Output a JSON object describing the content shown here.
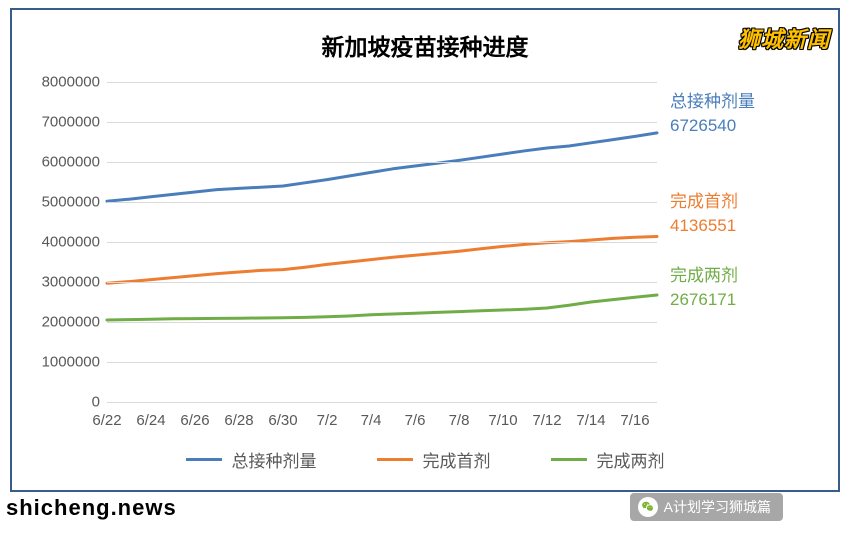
{
  "chart": {
    "title": "新加坡疫苗接种进度",
    "title_fontsize": 23,
    "background_color": "#ffffff",
    "border_color": "#385d8a",
    "grid_color": "#d9d9d9",
    "axis_label_color": "#595959",
    "axis_fontsize": 15,
    "ylim": [
      0,
      8000000
    ],
    "ytick_step": 1000000,
    "yticks": [
      "0",
      "1000000",
      "2000000",
      "3000000",
      "4000000",
      "5000000",
      "6000000",
      "7000000",
      "8000000"
    ],
    "xticks": [
      "6/22",
      "6/24",
      "6/26",
      "6/28",
      "6/30",
      "7/2",
      "7/4",
      "7/6",
      "7/8",
      "7/10",
      "7/12",
      "7/14",
      "7/16"
    ],
    "x_count": 26,
    "line_width": 3,
    "series": [
      {
        "key": "total",
        "name": "总接种剂量",
        "color": "#4a7ebb",
        "final_label": "总接种剂量",
        "final_value": "6726540",
        "values": [
          5020000,
          5070000,
          5130000,
          5190000,
          5250000,
          5310000,
          5340000,
          5370000,
          5400000,
          5480000,
          5560000,
          5650000,
          5740000,
          5830000,
          5900000,
          5970000,
          6040000,
          6120000,
          6200000,
          6280000,
          6350000,
          6400000,
          6480000,
          6560000,
          6640000,
          6726540
        ]
      },
      {
        "key": "first",
        "name": "完成首剂",
        "color": "#ed7d31",
        "final_label": "完成首剂",
        "final_value": "4136551",
        "values": [
          2970000,
          3010000,
          3060000,
          3110000,
          3160000,
          3210000,
          3250000,
          3290000,
          3310000,
          3370000,
          3440000,
          3500000,
          3560000,
          3620000,
          3670000,
          3720000,
          3770000,
          3830000,
          3890000,
          3940000,
          3980000,
          4010000,
          4050000,
          4090000,
          4120000,
          4136551
        ]
      },
      {
        "key": "second",
        "name": "完成两剂",
        "color": "#70ad47",
        "final_label": "完成两剂",
        "final_value": "2676171",
        "values": [
          2050000,
          2060000,
          2070000,
          2080000,
          2085000,
          2090000,
          2095000,
          2100000,
          2105000,
          2115000,
          2130000,
          2150000,
          2180000,
          2200000,
          2220000,
          2240000,
          2260000,
          2280000,
          2300000,
          2320000,
          2350000,
          2420000,
          2500000,
          2560000,
          2620000,
          2676171
        ]
      }
    ]
  },
  "watermarks": {
    "top_right": "狮城新闻",
    "bottom_left": "shicheng.news",
    "wechat": "A计划学习狮城篇"
  }
}
